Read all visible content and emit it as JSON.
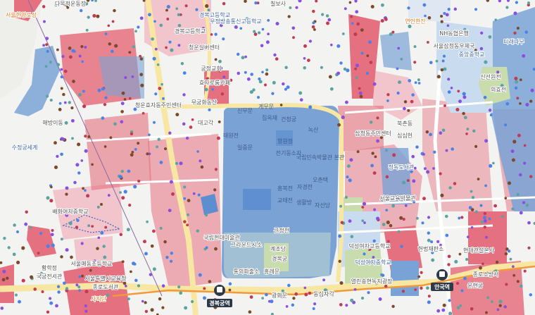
{
  "map": {
    "colors": {
      "background": "#f3f3f1",
      "road_major": "#f7e7a2",
      "road_minor": "#ffffff",
      "zone_pink": "#e5707f",
      "zone_light_pink": "#f2c4cb",
      "zone_blue": "#79a3d6",
      "zone_light_blue": "#c9dbef",
      "park_green": "#c8dcae",
      "subway_line": "#f09a3c"
    },
    "labels": [
      "다목적운동장",
      "서울한양도성",
      "경복고등학교",
      "우정방송통신고등학교",
      "경복고등학교",
      "청운실버센터",
      "궁정교회",
      "효자로룸카페",
      "무궁화동산",
      "청운효자동주민센터",
      "해방이동",
      "수정궁세계",
      "대고각",
      "태원전",
      "일중문",
      "신무문",
      "계무문",
      "집옥재",
      "건청궁",
      "향원정",
      "녹산",
      "전기동소자",
      "국립민속박물관 본관",
      "흥복전",
      "자경전",
      "오촌택",
      "교태전",
      "생활방",
      "자선당",
      "근정전",
      "계조당",
      "경복궁",
      "흥례문",
      "광화문",
      "동십자각",
      "삼청동주민센터",
      "북촌동",
      "NH농협은행",
      "서울삼청동우체국",
      "중앙중학교",
      "디래나무",
      "신선원전",
      "의효전",
      "정독도서관",
      "서울교육박물관",
      "덕성여자고등학교",
      "덕성여자중학교",
      "헌법재판소",
      "현대건설본사",
      "운현궁",
      "종로소방서",
      "국립현대미술관",
      "그라운드시소",
      "통의파출소",
      "황학정",
      "국궁전시관",
      "서울특별시교육청",
      "종로도서관",
      "배화여자중학교",
      "열린송현녹지광장",
      "칠보사",
      "연인한잔",
      "심심헌",
      "사직단",
      "서울매동초등학교"
    ],
    "stations": [
      {
        "name": "경복궁역",
        "icon": "subway-icon"
      },
      {
        "name": "안국역",
        "icon": "subway-icon"
      }
    ]
  }
}
